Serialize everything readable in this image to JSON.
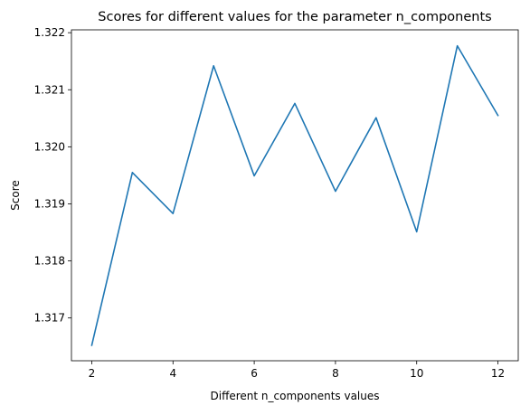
{
  "chart_data": {
    "type": "line",
    "title": "Scores for different values for the parameter n_components",
    "xlabel": "Different n_components values",
    "ylabel": "Score",
    "x": [
      2,
      3,
      4,
      5,
      6,
      7,
      8,
      9,
      10,
      11,
      12
    ],
    "series": [
      {
        "values": [
          1.31652,
          1.31955,
          1.31883,
          1.32142,
          1.31949,
          1.32076,
          1.31922,
          1.32051,
          1.31851,
          1.32177,
          1.32055
        ],
        "color": "#1f77b4"
      }
    ],
    "xlim": [
      1.5,
      12.5
    ],
    "ylim": [
      1.31625,
      1.32205
    ],
    "xticks": [
      2,
      4,
      6,
      8,
      10,
      12
    ],
    "xtick_labels": [
      "2",
      "4",
      "6",
      "8",
      "10",
      "12"
    ],
    "yticks": [
      1.317,
      1.318,
      1.319,
      1.32,
      1.321,
      1.322
    ],
    "ytick_labels": [
      "1.317",
      "1.318",
      "1.319",
      "1.320",
      "1.321",
      "1.322"
    ],
    "grid": false,
    "legend": "none"
  }
}
